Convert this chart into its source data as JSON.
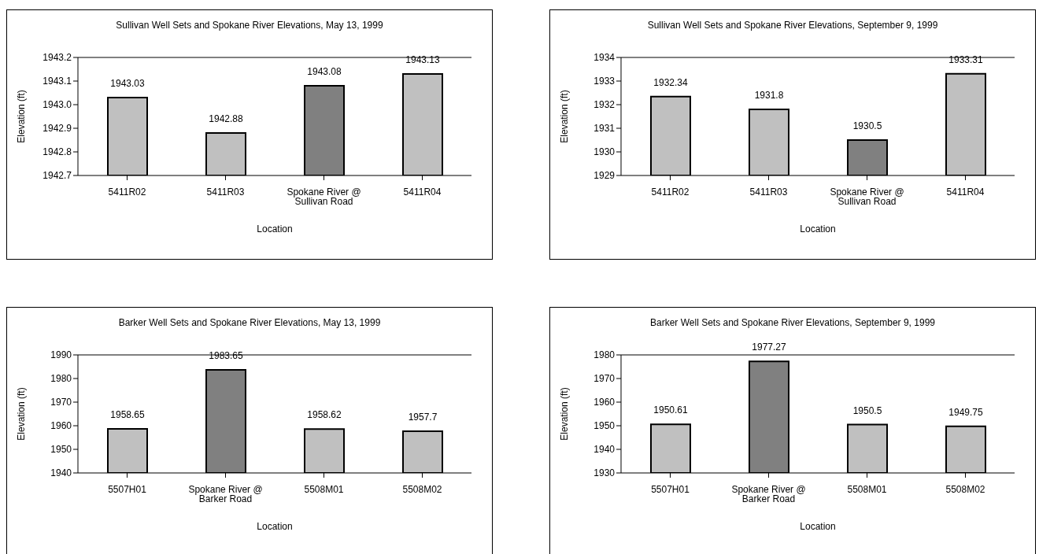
{
  "chart_data": [
    {
      "type": "bar",
      "title": "Sullivan Well Sets and Spokane River Elevations, May 13, 1999",
      "xlabel": "Location",
      "ylabel": "Elevation (ft)",
      "categories": [
        "5411R02",
        "5411R03",
        "Spokane River @ Sullivan Road",
        "5411R04"
      ],
      "values": [
        1943.03,
        1942.88,
        1943.08,
        1943.13
      ],
      "colors": [
        "#c0c0c0",
        "#c0c0c0",
        "#808080",
        "#c0c0c0"
      ],
      "ylim": [
        1942.7,
        1943.2
      ],
      "yticks": [
        1942.7,
        1942.8,
        1942.9,
        {
          "value": 1943,
          "label": "1943.0"
        },
        1943.1,
        1943.2
      ],
      "data_labels": true
    },
    {
      "type": "bar",
      "title": "Sullivan Well Sets and Spokane River Elevations, September 9, 1999",
      "xlabel": "Location",
      "ylabel": "Elevation (ft)",
      "categories": [
        "5411R02",
        "5411R03",
        "Spokane River @ Sullivan Road",
        "5411R04"
      ],
      "values": [
        1932.34,
        1931.8,
        1930.5,
        1933.31
      ],
      "colors": [
        "#c0c0c0",
        "#c0c0c0",
        "#808080",
        "#c0c0c0"
      ],
      "ylim": [
        1929,
        1934
      ],
      "yticks": [
        1929,
        1930,
        1931,
        1932,
        1933,
        1934
      ],
      "data_labels": true
    },
    {
      "type": "bar",
      "title": "Barker Well Sets and Spokane River Elevations, May 13, 1999",
      "xlabel": "Location",
      "ylabel": "Elevation (ft)",
      "categories": [
        "5507H01",
        "Spokane River @ Barker Road",
        "5508M01",
        "5508M02"
      ],
      "values": [
        1958.65,
        1983.65,
        1958.62,
        1957.7
      ],
      "colors": [
        "#c0c0c0",
        "#808080",
        "#c0c0c0",
        "#c0c0c0"
      ],
      "ylim": [
        1940,
        1990
      ],
      "yticks": [
        1940,
        1950,
        1960,
        1970,
        1980,
        1990
      ],
      "data_labels": true
    },
    {
      "type": "bar",
      "title": "Barker Well Sets and Spokane River Elevations, September 9, 1999",
      "xlabel": "Location",
      "ylabel": "Elevation (ft)",
      "categories": [
        "5507H01",
        "Spokane River @ Barker Road",
        "5508M01",
        "5508M02"
      ],
      "values": [
        1950.61,
        1977.27,
        1950.5,
        1949.75
      ],
      "colors": [
        "#c0c0c0",
        "#808080",
        "#c0c0c0",
        "#c0c0c0"
      ],
      "ylim": [
        1930,
        1980
      ],
      "yticks": [
        1930,
        1940,
        1950,
        1960,
        1970,
        1980
      ],
      "data_labels": true
    }
  ]
}
